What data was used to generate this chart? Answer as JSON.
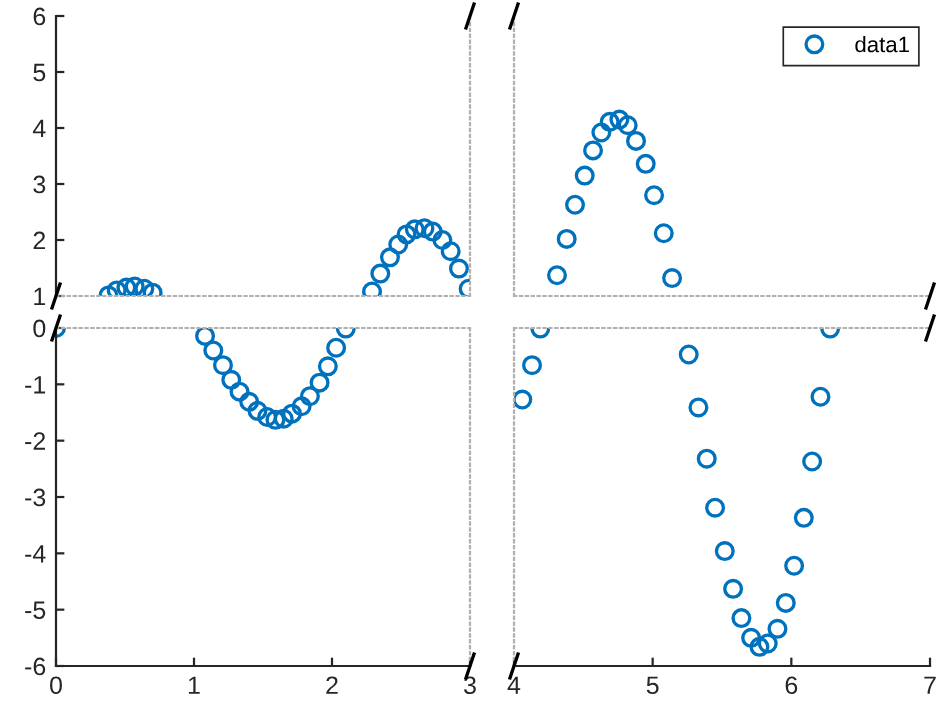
{
  "chart_data": [
    {
      "type": "scatter",
      "x": [
        0.38,
        0.44,
        0.51,
        0.57,
        0.64,
        0.7,
        2.29,
        2.35,
        2.42,
        2.48,
        2.54,
        2.6,
        2.67,
        2.73,
        2.8,
        2.86,
        2.92,
        2.99
      ],
      "series": [
        {
          "color": "#0072bd",
          "values": [
            1.01,
            1.1,
            1.15,
            1.17,
            1.13,
            1.06,
            1.08,
            1.4,
            1.69,
            1.92,
            2.1,
            2.19,
            2.21,
            2.15,
            2.0,
            1.8,
            1.49,
            1.13
          ]
        }
      ],
      "xlim": [
        0,
        3
      ],
      "ylim": [
        1,
        6
      ],
      "xticks": [
        0,
        1,
        2,
        3
      ],
      "yticks": [
        1,
        2,
        3,
        4,
        5,
        6
      ],
      "tick_labels": "y",
      "marker": "circle"
    },
    {
      "type": "scatter",
      "x": [
        4.31,
        4.38,
        4.44,
        4.51,
        4.57,
        4.63,
        4.69,
        4.76,
        4.82,
        4.88,
        4.95,
        5.01,
        5.08,
        5.14
      ],
      "series": [
        {
          "name": "data1",
          "color": "#0072bd",
          "values": [
            1.37,
            2.02,
            2.63,
            3.15,
            3.6,
            3.92,
            4.11,
            4.15,
            4.05,
            3.77,
            3.36,
            2.8,
            2.12,
            1.32
          ]
        }
      ],
      "xlim": [
        4,
        7
      ],
      "ylim": [
        1,
        6
      ],
      "xticks": [
        4,
        5,
        6,
        7
      ],
      "yticks": [
        1,
        2,
        3,
        4,
        5,
        6
      ],
      "tick_labels": false,
      "marker": "circle",
      "legend": "top right"
    },
    {
      "type": "scatter",
      "x": [
        0,
        1.08,
        1.14,
        1.21,
        1.27,
        1.33,
        1.4,
        1.46,
        1.53,
        1.59,
        1.65,
        1.71,
        1.78,
        1.84,
        1.91,
        1.97,
        2.03,
        2.1
      ],
      "series": [
        {
          "color": "#0072bd",
          "values": [
            0,
            -0.14,
            -0.4,
            -0.66,
            -0.92,
            -1.13,
            -1.31,
            -1.47,
            -1.58,
            -1.63,
            -1.61,
            -1.52,
            -1.39,
            -1.21,
            -0.97,
            -0.68,
            -0.35,
            -0.01
          ]
        }
      ],
      "xlim": [
        0,
        3
      ],
      "ylim": [
        -6,
        0
      ],
      "xticks": [
        0,
        1,
        2,
        3
      ],
      "yticks": [
        -6,
        -5,
        -4,
        -3,
        -2,
        -1,
        0
      ],
      "marker": "circle"
    },
    {
      "type": "scatter",
      "x": [
        4.06,
        4.13,
        4.19,
        5.26,
        5.33,
        5.39,
        5.45,
        5.52,
        5.58,
        5.64,
        5.71,
        5.77,
        5.83,
        5.9,
        5.96,
        6.02,
        6.09,
        6.15,
        6.21,
        6.28
      ],
      "series": [
        {
          "color": "#0072bd",
          "values": [
            -1.27,
            -0.66,
            -0.01,
            -0.47,
            -1.41,
            -2.32,
            -3.19,
            -3.96,
            -4.63,
            -5.15,
            -5.5,
            -5.66,
            -5.6,
            -5.34,
            -4.88,
            -4.22,
            -3.37,
            -2.37,
            -1.22,
            -0.01
          ]
        }
      ],
      "xlim": [
        4,
        7
      ],
      "ylim": [
        -6,
        0
      ],
      "xticks": [
        4,
        5,
        6,
        7
      ],
      "yticks": [
        -6,
        -5,
        -4,
        -3,
        -2,
        -1,
        0
      ],
      "tick_labels": "x",
      "marker": "circle"
    }
  ]
}
